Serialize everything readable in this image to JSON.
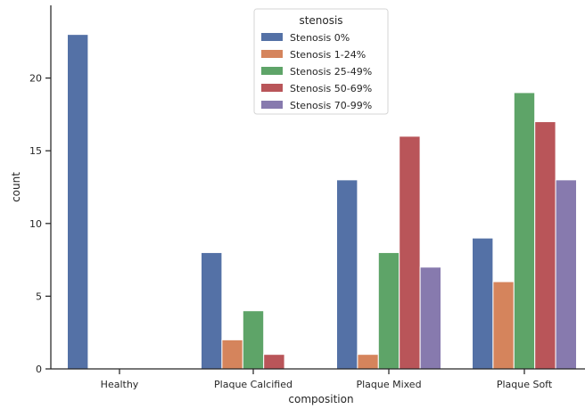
{
  "chart_data": {
    "type": "bar",
    "xlabel": "composition",
    "ylabel": "count",
    "categories": [
      "Healthy",
      "Plaque Calcified",
      "Plaque Mixed",
      "Plaque Soft"
    ],
    "ylim": [
      0,
      25
    ],
    "yticks": [
      0,
      5,
      10,
      15,
      20
    ],
    "legend": {
      "title": "stenosis",
      "placement": "top-center"
    },
    "series": [
      {
        "name": "Stenosis 0%",
        "color": "#5471a6",
        "values": [
          23,
          8,
          13,
          9
        ]
      },
      {
        "name": "Stenosis 1-24%",
        "color": "#d5845c",
        "values": [
          0,
          2,
          1,
          6
        ]
      },
      {
        "name": "Stenosis 25-49%",
        "color": "#5ea468",
        "values": [
          0,
          4,
          8,
          19
        ]
      },
      {
        "name": "Stenosis 50-69%",
        "color": "#b95559",
        "values": [
          0,
          1,
          16,
          17
        ]
      },
      {
        "name": "Stenosis 70-99%",
        "color": "#877aae",
        "values": [
          0,
          0,
          7,
          13
        ]
      }
    ],
    "grid": false
  }
}
